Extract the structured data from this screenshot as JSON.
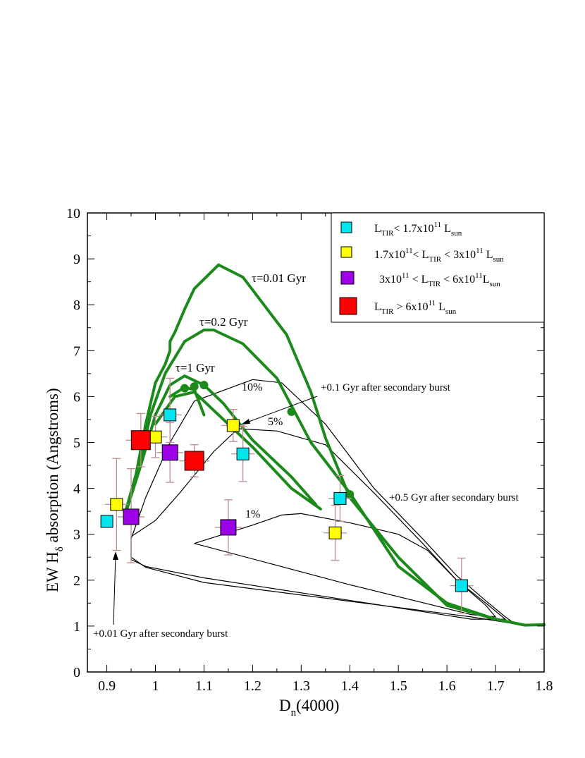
{
  "chart_data": {
    "type": "scatter",
    "xlabel_main": "D",
    "xlabel_sub": "n",
    "xlabel_rest": "(4000)",
    "ylabel_pre": "EW H",
    "ylabel_sub": "δ",
    "ylabel_post": "  absorption  (Angstroms)",
    "xlim": [
      0.86,
      1.8
    ],
    "ylim": [
      0,
      10
    ],
    "x_ticks": [
      0.9,
      1.0,
      1.1,
      1.2,
      1.3,
      1.4,
      1.5,
      1.6,
      1.7,
      1.8
    ],
    "x_tick_labels": [
      "0.9",
      "1",
      "1.1",
      "1.2",
      "1.3",
      "1.4",
      "1.5",
      "1.6",
      "1.7",
      "1.8"
    ],
    "y_ticks": [
      0,
      1,
      2,
      3,
      4,
      5,
      6,
      7,
      8,
      9,
      10
    ],
    "y_tick_labels": [
      "0",
      "1",
      "2",
      "3",
      "4",
      "5",
      "6",
      "7",
      "8",
      "9",
      "10"
    ],
    "legend": [
      {
        "color": "#00e5ee",
        "size": "small",
        "parts": [
          "L",
          "TIR",
          "< 1.7x10",
          "11",
          " L",
          "sun"
        ]
      },
      {
        "color": "#ffff00",
        "size": "small",
        "parts": [
          "1.7x10",
          "11",
          "< L",
          "TIR",
          " < 3x10",
          "11",
          " L",
          "sun"
        ]
      },
      {
        "color": "#9b00e6",
        "size": "medium",
        "parts": [
          "3x10",
          "11",
          " < L",
          "TIR",
          " < 6x10",
          "11",
          "L",
          "sun"
        ]
      },
      {
        "color": "#ff0000",
        "size": "large",
        "parts": [
          "L",
          "TIR",
          "  >   6x10",
          "11",
          " L",
          "sun"
        ]
      }
    ],
    "series": [
      {
        "name": "L_TIR < 1.7x10^11",
        "color": "#00e5ee",
        "size": "small",
        "points": [
          [
            0.9,
            3.28,
            0.0,
            0.0
          ],
          [
            1.03,
            5.6,
            0.8,
            0.6
          ],
          [
            1.18,
            4.75,
            0.6,
            0.6
          ],
          [
            1.38,
            3.78,
            0.5,
            0.5
          ],
          [
            1.63,
            1.88,
            0.6,
            0.6
          ]
        ]
      },
      {
        "name": "1.7x10^11 < L_TIR < 3x10^11",
        "color": "#ffff00",
        "size": "small",
        "points": [
          [
            0.92,
            3.65,
            1.0,
            1.0
          ],
          [
            1.0,
            5.12,
            0.45,
            0.45
          ],
          [
            1.16,
            5.37,
            0.35,
            0.35
          ],
          [
            1.37,
            3.03,
            0.6,
            0.6
          ]
        ]
      },
      {
        "name": "3x10^11 < L_TIR < 6x10^11",
        "color": "#9b00e6",
        "size": "medium",
        "points": [
          [
            0.95,
            3.38,
            1.05,
            1.0
          ],
          [
            1.03,
            4.78,
            0.65,
            0.65
          ],
          [
            1.15,
            3.15,
            0.6,
            0.6
          ]
        ]
      },
      {
        "name": "L_TIR > 6x10^11",
        "color": "#ff0000",
        "size": "large",
        "points": [
          [
            0.97,
            5.05,
            0.58,
            0.58
          ],
          [
            1.08,
            4.6,
            0.35,
            0.35
          ]
        ]
      }
    ],
    "model_curves": [
      {
        "name": "tau=0.01 Gyr",
        "label": "τ=0.01 Gyr",
        "points": [
          [
            0.94,
            3.55
          ],
          [
            0.96,
            4.3
          ],
          [
            0.98,
            5.4
          ],
          [
            1.0,
            6.3
          ],
          [
            1.02,
            6.7
          ],
          [
            1.03,
            7.0
          ],
          [
            1.03,
            7.2
          ],
          [
            1.04,
            7.4
          ],
          [
            1.06,
            7.9
          ],
          [
            1.08,
            8.35
          ],
          [
            1.13,
            8.87
          ],
          [
            1.18,
            8.6
          ],
          [
            1.27,
            7.35
          ],
          [
            1.32,
            6.1
          ],
          [
            1.35,
            5.1
          ],
          [
            1.4,
            3.8
          ],
          [
            1.5,
            2.5
          ],
          [
            1.6,
            1.45
          ],
          [
            1.7,
            1.15
          ],
          [
            1.76,
            1.02
          ],
          [
            1.8,
            1.03
          ]
        ]
      },
      {
        "name": "tau=0.2 Gyr",
        "label": "τ=0.2 Gyr",
        "points": [
          [
            0.94,
            3.55
          ],
          [
            0.96,
            4.2
          ],
          [
            0.99,
            5.6
          ],
          [
            1.02,
            6.5
          ],
          [
            1.06,
            7.2
          ],
          [
            1.1,
            7.45
          ],
          [
            1.12,
            7.45
          ],
          [
            1.18,
            7.15
          ],
          [
            1.25,
            6.4
          ],
          [
            1.32,
            5.0
          ],
          [
            1.4,
            3.9
          ],
          [
            1.5,
            2.3
          ],
          [
            1.6,
            1.5
          ],
          [
            1.7,
            1.15
          ],
          [
            1.76,
            1.02
          ]
        ]
      },
      {
        "name": "tau=1 Gyr",
        "label": "τ=1 Gyr",
        "points": [
          [
            0.94,
            3.5
          ],
          [
            0.97,
            4.5
          ],
          [
            1.0,
            5.6
          ],
          [
            1.03,
            6.25
          ],
          [
            1.06,
            6.45
          ],
          [
            1.09,
            6.3
          ],
          [
            1.1,
            6.25
          ],
          [
            1.14,
            5.85
          ],
          [
            1.2,
            5.05
          ],
          [
            1.28,
            4.25
          ],
          [
            1.33,
            3.65
          ]
        ]
      },
      {
        "name": "tau=1 Gyr b",
        "label": "",
        "points": [
          [
            1.03,
            6.0
          ],
          [
            1.06,
            6.2
          ],
          [
            1.08,
            6.15
          ],
          [
            1.1,
            5.6
          ]
        ]
      },
      {
        "name": "tau=1 Gyr c",
        "label": "",
        "points": [
          [
            1.0,
            5.4
          ],
          [
            1.04,
            6.0
          ],
          [
            1.08,
            6.1
          ],
          [
            1.12,
            5.7
          ],
          [
            1.2,
            4.9
          ],
          [
            1.28,
            4.0
          ],
          [
            1.34,
            3.55
          ]
        ]
      }
    ],
    "model_markers": [
      [
        1.06,
        6.18
      ],
      [
        1.08,
        6.22
      ],
      [
        1.1,
        6.25
      ],
      [
        1.28,
        5.67
      ],
      [
        1.4,
        3.87
      ]
    ],
    "burst_tracks": [
      {
        "label": "10%",
        "points": [
          [
            0.95,
            2.9
          ],
          [
            0.98,
            3.8
          ],
          [
            1.03,
            5.0
          ],
          [
            1.08,
            5.9
          ],
          [
            1.2,
            6.37
          ],
          [
            1.26,
            6.3
          ],
          [
            1.35,
            5.4
          ],
          [
            1.45,
            4.0
          ],
          [
            1.55,
            2.9
          ],
          [
            1.62,
            2.1
          ],
          [
            1.68,
            1.55
          ],
          [
            1.72,
            1.2
          ],
          [
            1.74,
            1.05
          ],
          [
            1.65,
            1.2
          ],
          [
            1.1,
            1.95
          ],
          [
            0.98,
            2.28
          ],
          [
            0.95,
            2.5
          ],
          [
            0.95,
            2.9
          ]
        ]
      },
      {
        "label": "5%",
        "points": [
          [
            0.95,
            2.95
          ],
          [
            1.0,
            3.3
          ],
          [
            1.05,
            3.9
          ],
          [
            1.12,
            4.8
          ],
          [
            1.17,
            5.3
          ],
          [
            1.25,
            5.25
          ],
          [
            1.35,
            4.95
          ],
          [
            1.45,
            3.9
          ],
          [
            1.55,
            2.8
          ],
          [
            1.62,
            2.0
          ],
          [
            1.68,
            1.5
          ],
          [
            1.72,
            1.15
          ],
          [
            1.65,
            1.15
          ],
          [
            1.1,
            2.05
          ],
          [
            0.98,
            2.3
          ],
          [
            0.95,
            2.45
          ],
          [
            0.95,
            2.95
          ]
        ]
      },
      {
        "label": "1%",
        "points": [
          [
            1.08,
            2.8
          ],
          [
            1.2,
            3.2
          ],
          [
            1.26,
            3.42
          ],
          [
            1.3,
            3.45
          ],
          [
            1.4,
            3.25
          ],
          [
            1.5,
            3.0
          ],
          [
            1.56,
            2.65
          ],
          [
            1.62,
            2.0
          ],
          [
            1.68,
            1.45
          ],
          [
            1.7,
            1.2
          ],
          [
            1.65,
            1.25
          ],
          [
            1.4,
            1.9
          ],
          [
            1.08,
            2.8
          ]
        ]
      }
    ],
    "annotations": {
      "burst_01": "+0.1 Gyr after secondary burst",
      "burst_05": "+0.5 Gyr after secondary burst",
      "burst_001": "+0.01 Gyr after secondary burst",
      "pct10": "10%",
      "pct5": "5%",
      "pct1": "1%"
    },
    "colors": {
      "model": "#1b8a1b",
      "track": "#000000",
      "errorbar": "#bc8f8f"
    }
  }
}
